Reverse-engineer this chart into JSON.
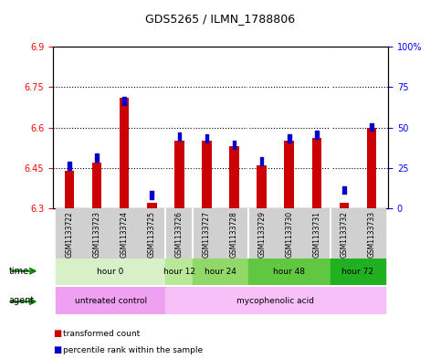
{
  "title": "GDS5265 / ILMN_1788806",
  "samples": [
    "GSM1133722",
    "GSM1133723",
    "GSM1133724",
    "GSM1133725",
    "GSM1133726",
    "GSM1133727",
    "GSM1133728",
    "GSM1133729",
    "GSM1133730",
    "GSM1133731",
    "GSM1133732",
    "GSM1133733"
  ],
  "transformed_count": [
    6.44,
    6.47,
    6.71,
    6.32,
    6.55,
    6.55,
    6.53,
    6.46,
    6.55,
    6.56,
    6.32,
    6.6
  ],
  "percentile_rank": [
    25,
    30,
    65,
    7,
    43,
    42,
    38,
    28,
    42,
    44,
    10,
    49
  ],
  "ylim_left": [
    6.3,
    6.9
  ],
  "ylim_right": [
    0,
    100
  ],
  "yticks_left": [
    6.3,
    6.45,
    6.6,
    6.75,
    6.9
  ],
  "yticks_right": [
    0,
    25,
    50,
    75,
    100
  ],
  "ytick_labels_left": [
    "6.3",
    "6.45",
    "6.6",
    "6.75",
    "6.9"
  ],
  "ytick_labels_right": [
    "0",
    "25",
    "50",
    "75",
    "100%"
  ],
  "bar_base": 6.3,
  "time_groups": [
    {
      "label": "hour 0",
      "start": 0,
      "end": 3,
      "color": "#d4f0c4"
    },
    {
      "label": "hour 12",
      "start": 4,
      "end": 4,
      "color": "#b8e8a0"
    },
    {
      "label": "hour 24",
      "start": 5,
      "end": 6,
      "color": "#90d870"
    },
    {
      "label": "hour 48",
      "start": 7,
      "end": 9,
      "color": "#60c840"
    },
    {
      "label": "hour 72",
      "start": 10,
      "end": 11,
      "color": "#30b820"
    }
  ],
  "agent_groups": [
    {
      "label": "untreated control",
      "start": 0,
      "end": 3,
      "color": "#f0a0f0"
    },
    {
      "label": "mycophenolic acid",
      "start": 4,
      "end": 11,
      "color": "#f8c8f8"
    }
  ],
  "red_color": "#cc0000",
  "blue_color": "#0000cc",
  "grid_color": "#000000",
  "bg_color": "#f0f0f0",
  "legend_items": [
    {
      "color": "#cc0000",
      "label": "transformed count"
    },
    {
      "color": "#0000cc",
      "label": "percentile rank within the sample"
    }
  ]
}
